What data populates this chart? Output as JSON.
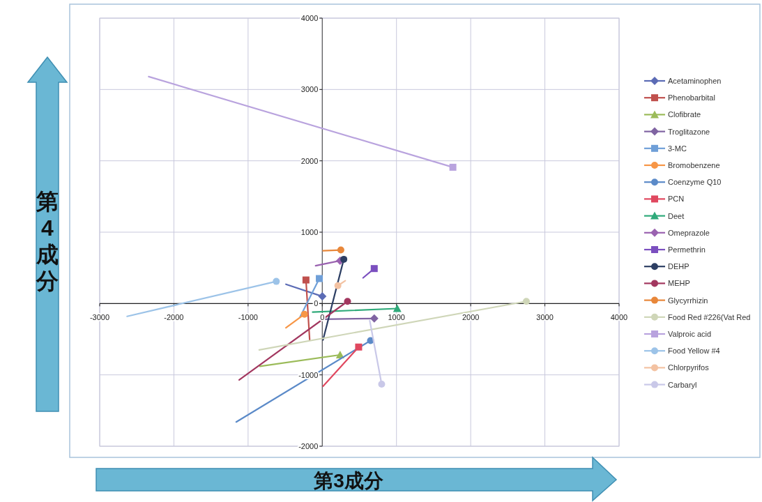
{
  "chart_data": {
    "type": "line",
    "xlabel": "第3成分",
    "ylabel": "第4成分",
    "xlim": [
      -3000,
      4000
    ],
    "ylim": [
      -2000,
      4000
    ],
    "xticks": [
      -3000,
      -2000,
      -1000,
      0,
      1000,
      2000,
      3000,
      4000
    ],
    "yticks": [
      -2000,
      -1000,
      0,
      1000,
      2000,
      3000,
      4000
    ],
    "grid": true,
    "legend": "right",
    "series": [
      {
        "name": "Acetaminophen",
        "color": "#5b6bb5",
        "marker": "diamond",
        "x": [
          -490,
          0
        ],
        "values": [
          270,
          100
        ]
      },
      {
        "name": "Phenobarbital",
        "color": "#c0504d",
        "marker": "square",
        "x": [
          -170,
          -220
        ],
        "values": [
          -510,
          330
        ]
      },
      {
        "name": "Clofibrate",
        "color": "#9bbb59",
        "marker": "triangle",
        "x": [
          -840,
          240
        ],
        "values": [
          -880,
          -720
        ]
      },
      {
        "name": "Troglitazone",
        "color": "#8064a2",
        "marker": "diamond",
        "x": [
          10,
          700
        ],
        "values": [
          -220,
          -210
        ]
      },
      {
        "name": "3-MC",
        "color": "#6f9fd8",
        "marker": "square",
        "x": [
          -300,
          -40
        ],
        "values": [
          -190,
          350
        ]
      },
      {
        "name": "Bromobenzene",
        "color": "#f79646",
        "marker": "circle",
        "x": [
          -490,
          -240
        ],
        "values": [
          -340,
          -150
        ]
      },
      {
        "name": "Coenzyme Q10",
        "color": "#5b8ac8",
        "marker": "circle",
        "x": [
          -1160,
          650
        ],
        "values": [
          -1660,
          -520
        ]
      },
      {
        "name": "PCN",
        "color": "#e0485f",
        "marker": "square",
        "x": [
          10,
          490
        ],
        "values": [
          -1160,
          -610
        ]
      },
      {
        "name": "Deet",
        "color": "#2faa7a",
        "marker": "triangle",
        "x": [
          -130,
          1010
        ],
        "values": [
          -120,
          -70
        ]
      },
      {
        "name": "Omeprazole",
        "color": "#9a62b0",
        "marker": "diamond",
        "x": [
          -90,
          240
        ],
        "values": [
          530,
          600
        ]
      },
      {
        "name": "Permethrin",
        "color": "#7b4fbf",
        "marker": "square",
        "x": [
          550,
          700
        ],
        "values": [
          360,
          490
        ]
      },
      {
        "name": "DEHP",
        "color": "#2c3e63",
        "marker": "circle",
        "x": [
          10,
          290
        ],
        "values": [
          -510,
          620
        ]
      },
      {
        "name": "MEHP",
        "color": "#a2375f",
        "marker": "circle",
        "x": [
          -1120,
          340
        ],
        "values": [
          -1070,
          30
        ]
      },
      {
        "name": "Glycyrrhizin",
        "color": "#e8873a",
        "marker": "circle",
        "x": [
          10,
          250
        ],
        "values": [
          740,
          750
        ]
      },
      {
        "name": "Food Red #226(Vat Red",
        "color": "#cfd6b8",
        "marker": "circle",
        "x": [
          -850,
          2750
        ],
        "values": [
          -650,
          30
        ]
      },
      {
        "name": "Valproic acid",
        "color": "#b9a3de",
        "marker": "square",
        "x": [
          -2340,
          1760
        ],
        "values": [
          3180,
          1910
        ]
      },
      {
        "name": "Food Yellow #4",
        "color": "#9cc3e8",
        "marker": "circle",
        "x": [
          -2630,
          -620
        ],
        "values": [
          -180,
          310
        ]
      },
      {
        "name": "Chlorpyrifos",
        "color": "#f3c2a2",
        "marker": "circle",
        "x": [
          310,
          210
        ],
        "values": [
          320,
          250
        ]
      },
      {
        "name": "Carbaryl",
        "color": "#c9c8e8",
        "marker": "circle",
        "x": [
          640,
          800
        ],
        "values": [
          -240,
          -1130
        ]
      }
    ]
  }
}
